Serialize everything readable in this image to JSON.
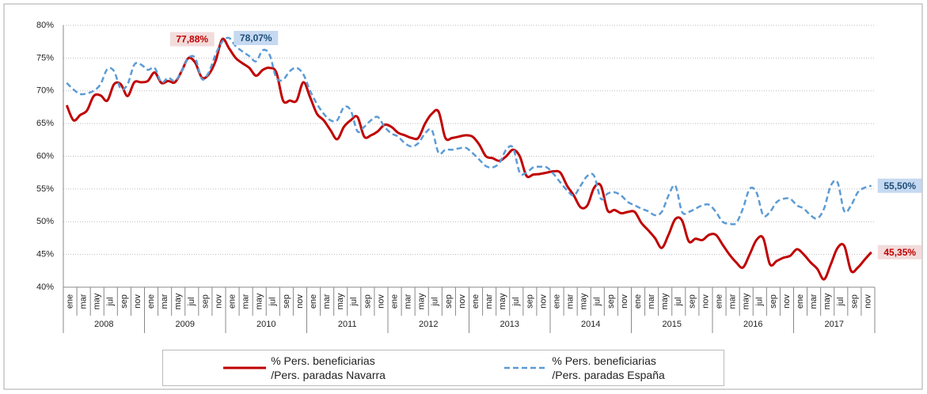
{
  "chart_data": {
    "type": "line",
    "categories": [
      "ene",
      null,
      "mar",
      null,
      "may",
      null,
      "jul",
      null,
      "sep",
      null,
      "nov",
      null,
      "ene",
      null,
      "mar",
      null,
      "may",
      null,
      "jul",
      null,
      "sep",
      null,
      "nov",
      null,
      "ene",
      null,
      "mar",
      null,
      "may",
      null,
      "jul",
      null,
      "sep",
      null,
      "nov",
      null,
      "ene",
      null,
      "mar",
      null,
      "may",
      null,
      "jul",
      null,
      "sep",
      null,
      "nov",
      null,
      "ene",
      null,
      "mar",
      null,
      "may",
      null,
      "jul",
      null,
      "sep",
      null,
      "nov",
      null,
      "ene",
      null,
      "mar",
      null,
      "may",
      null,
      "jul",
      null,
      "sep",
      null,
      "nov",
      null,
      "ene",
      null,
      "mar",
      null,
      "may",
      null,
      "jul",
      null,
      "sep",
      null,
      "nov",
      null,
      "ene",
      null,
      "mar",
      null,
      "may",
      null,
      "jul",
      null,
      "sep",
      null,
      "nov",
      null,
      "ene",
      null,
      "mar",
      null,
      "may",
      null,
      "jul",
      null,
      "sep",
      null,
      "nov",
      null,
      "ene",
      null,
      "mar",
      null,
      "may",
      null,
      "jul",
      null,
      "sep",
      null,
      "nov",
      null
    ],
    "years": [
      "2008",
      "2009",
      "2010",
      "2011",
      "2012",
      "2013",
      "2014",
      "2015",
      "2016",
      "2017"
    ],
    "series": [
      {
        "name": "% Pers. beneficiarias\n/Pers. paradas Navarra",
        "color": "#c00000",
        "label_background": "#f2dcdb",
        "values": [
          67.8,
          65.5,
          66.3,
          67,
          69.2,
          69.3,
          68.5,
          71,
          71,
          69.2,
          71.3,
          71.3,
          71.5,
          72.8,
          71.2,
          71.5,
          71.3,
          73,
          75,
          74.3,
          72,
          72.5,
          74.5,
          77.88,
          76.5,
          75,
          74.2,
          73.5,
          72.3,
          73.2,
          73.5,
          72.8,
          68.5,
          68.5,
          68.5,
          71.3,
          69,
          66.5,
          65.5,
          64,
          62.6,
          64.5,
          65.5,
          66,
          63,
          63.2,
          63.8,
          64.8,
          64.5,
          63.6,
          63.2,
          62.8,
          62.8,
          65,
          66.5,
          66.8,
          62.8,
          62.8,
          63,
          63.2,
          63,
          61.8,
          60,
          59.7,
          59.3,
          60,
          61,
          60,
          57,
          57.2,
          57.3,
          57.5,
          57.7,
          57.5,
          55.5,
          54,
          52.2,
          52.5,
          55.2,
          55.5,
          51.7,
          51.8,
          51.3,
          51.5,
          51.5,
          49.8,
          48.7,
          47.5,
          46,
          48,
          50.4,
          50.2,
          47,
          47.4,
          47.2,
          48,
          48,
          46.5,
          45,
          43.8,
          43,
          45,
          47.2,
          47.5,
          43.5,
          44,
          44.5,
          44.8,
          45.8,
          45,
          43.8,
          42.8,
          41.2,
          43.5,
          46,
          46.3,
          42.5,
          43,
          44.2,
          45.35
        ],
        "value_labels": [
          null,
          null,
          null,
          null,
          null,
          null,
          null,
          null,
          null,
          null,
          null,
          null,
          null,
          null,
          null,
          null,
          null,
          null,
          null,
          null,
          null,
          null,
          null,
          "77,88%",
          null,
          null,
          null,
          null,
          null,
          null,
          null,
          null,
          null,
          null,
          null,
          null,
          null,
          null,
          null,
          null,
          null,
          null,
          null,
          null,
          null,
          null,
          null,
          null,
          null,
          null,
          null,
          null,
          null,
          null,
          null,
          null,
          null,
          null,
          null,
          null,
          null,
          null,
          null,
          null,
          null,
          null,
          null,
          null,
          null,
          null,
          null,
          null,
          null,
          null,
          null,
          null,
          null,
          null,
          null,
          null,
          null,
          null,
          null,
          null,
          null,
          null,
          null,
          null,
          null,
          null,
          null,
          null,
          null,
          null,
          null,
          null,
          null,
          null,
          null,
          null,
          null,
          null,
          null,
          null,
          null,
          null,
          null,
          null,
          null,
          null,
          null,
          null,
          null,
          null,
          null,
          null,
          null,
          null,
          null,
          "45,35%"
        ]
      },
      {
        "name": "% Pers. beneficiarias\n/Pers. paradas España",
        "color": "#5b9bd5",
        "label_background": "#c5d9f1",
        "dashed": true,
        "values": [
          71.2,
          70.2,
          69.5,
          69.6,
          70,
          71,
          73.3,
          73,
          70.3,
          71,
          74,
          74,
          73.2,
          73.5,
          71.3,
          72,
          71.5,
          73,
          75,
          75,
          71.8,
          72.8,
          75.5,
          77.5,
          78.07,
          76.8,
          76,
          75.3,
          74.5,
          76.2,
          75.5,
          72,
          71.7,
          73,
          73.5,
          72.5,
          70,
          68,
          66.5,
          65.5,
          65.5,
          67.5,
          67,
          63.8,
          64.5,
          65.5,
          66,
          64.5,
          63.5,
          63,
          62,
          61.5,
          62,
          63.5,
          64,
          60.5,
          61,
          61,
          61.2,
          61.3,
          60.5,
          59.5,
          58.5,
          58.3,
          59,
          61,
          61.3,
          57.5,
          57.5,
          58.3,
          58.4,
          58.3,
          57.3,
          56,
          54.8,
          54,
          55.5,
          57,
          57,
          53.5,
          54.3,
          54.5,
          54,
          53,
          52.5,
          52,
          51.6,
          51,
          51.5,
          54,
          55.5,
          51.5,
          51.5,
          52,
          52.5,
          52.6,
          51.5,
          50,
          49.7,
          49.8,
          52,
          55,
          54.5,
          51,
          51.5,
          53,
          53.5,
          53.5,
          52.5,
          52,
          51,
          50.5,
          52,
          55.5,
          56,
          51.6,
          52.5,
          54.5,
          55.2,
          55.5
        ],
        "value_labels": [
          null,
          null,
          null,
          null,
          null,
          null,
          null,
          null,
          null,
          null,
          null,
          null,
          null,
          null,
          null,
          null,
          null,
          null,
          null,
          null,
          null,
          null,
          null,
          null,
          "78,07%",
          null,
          null,
          null,
          null,
          null,
          null,
          null,
          null,
          null,
          null,
          null,
          null,
          null,
          null,
          null,
          null,
          null,
          null,
          null,
          null,
          null,
          null,
          null,
          null,
          null,
          null,
          null,
          null,
          null,
          null,
          null,
          null,
          null,
          null,
          null,
          null,
          null,
          null,
          null,
          null,
          null,
          null,
          null,
          null,
          null,
          null,
          null,
          null,
          null,
          null,
          null,
          null,
          null,
          null,
          null,
          null,
          null,
          null,
          null,
          null,
          null,
          null,
          null,
          null,
          null,
          null,
          null,
          null,
          null,
          null,
          null,
          null,
          null,
          null,
          null,
          null,
          null,
          null,
          null,
          null,
          null,
          null,
          null,
          null,
          null,
          null,
          null,
          null,
          null,
          null,
          null,
          null,
          null,
          null,
          "55,50%"
        ]
      }
    ],
    "ylim": [
      40,
      80
    ],
    "yticks": [
      {
        "value": 40,
        "label": "40%"
      },
      {
        "value": 45,
        "label": "45%"
      },
      {
        "value": 50,
        "label": "50%"
      },
      {
        "value": 55,
        "label": "55%"
      },
      {
        "value": 60,
        "label": "60%"
      },
      {
        "value": 65,
        "label": "65%"
      },
      {
        "value": 70,
        "label": "70%"
      },
      {
        "value": 75,
        "label": "75%"
      },
      {
        "value": 80,
        "label": "80%"
      }
    ],
    "grid": true,
    "legend": "bottom"
  }
}
